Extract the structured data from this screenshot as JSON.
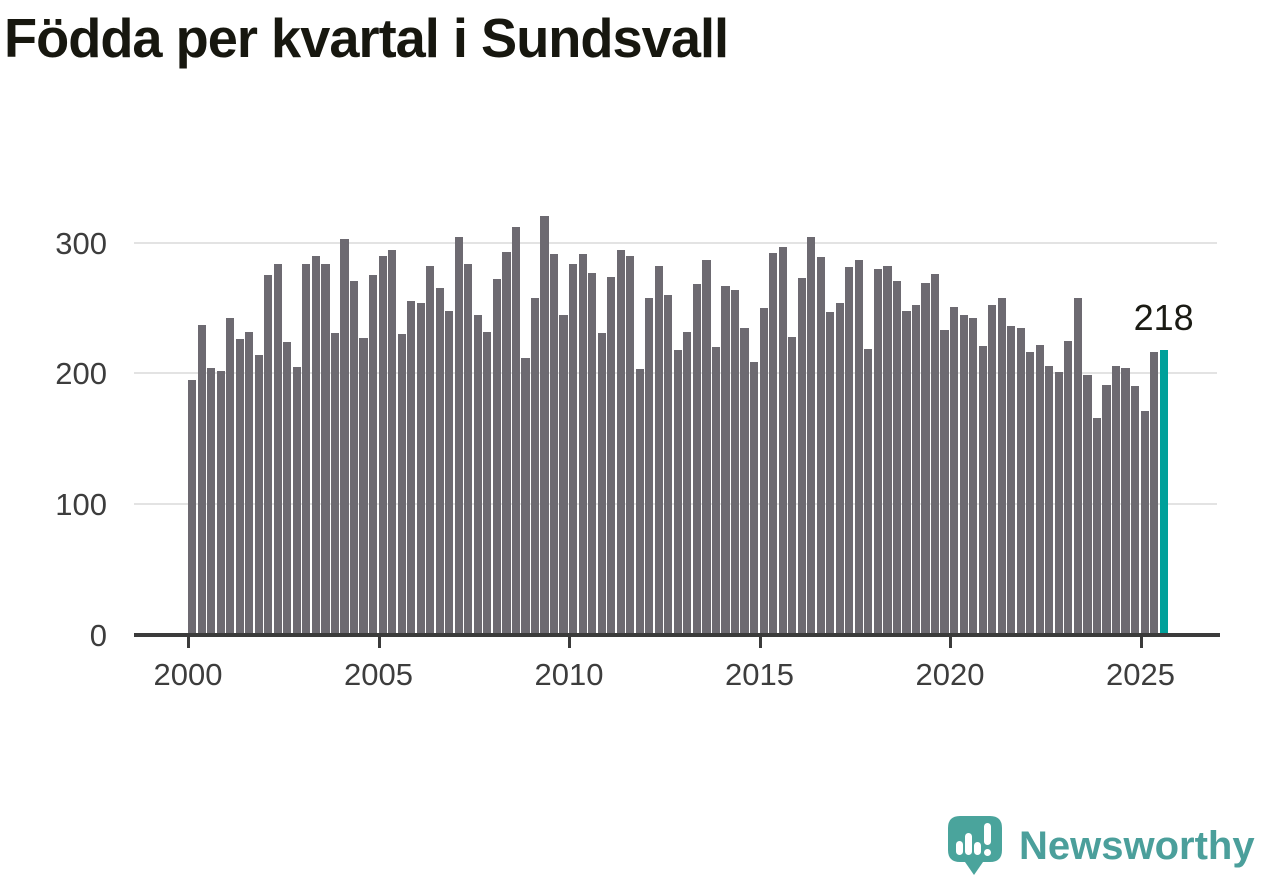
{
  "title": "Födda per kvartal i Sundsvall",
  "annotation": {
    "value_label": "218"
  },
  "footer": {
    "brand": "Newsworthy"
  },
  "colors": {
    "bar": "#6d6a71",
    "highlight": "#00a09a",
    "brand_teal": "#4aa49c",
    "axis": "#3b3b3b",
    "grid": "#e3e3e3",
    "tick_text": "#3d3d3d",
    "title_text": "#17170f"
  },
  "chart_data": {
    "type": "bar",
    "title": "Födda per kvartal i Sundsvall",
    "x_start": "2000-Q1",
    "x_end": "2025-Q3",
    "x_tick_labels": [
      "2000",
      "2005",
      "2010",
      "2015",
      "2020",
      "2025"
    ],
    "y_ticks": [
      0,
      100,
      200,
      300
    ],
    "ylim": [
      0,
      330
    ],
    "grid": true,
    "legend": false,
    "highlight_index": 102,
    "highlight_value": 218,
    "values": [
      195,
      237,
      204,
      202,
      242,
      226,
      232,
      214,
      275,
      284,
      224,
      205,
      284,
      290,
      284,
      231,
      303,
      271,
      227,
      275,
      290,
      294,
      230,
      255,
      254,
      282,
      265,
      248,
      304,
      284,
      245,
      232,
      272,
      293,
      312,
      212,
      258,
      320,
      291,
      245,
      284,
      291,
      277,
      231,
      274,
      294,
      290,
      203,
      258,
      282,
      260,
      218,
      232,
      268,
      287,
      220,
      267,
      264,
      235,
      209,
      250,
      292,
      297,
      228,
      273,
      304,
      289,
      247,
      254,
      281,
      287,
      219,
      280,
      282,
      271,
      248,
      252,
      269,
      276,
      233,
      251,
      245,
      242,
      221,
      252,
      258,
      236,
      235,
      216,
      222,
      206,
      201,
      225,
      258,
      199,
      166,
      191,
      206,
      204,
      190,
      171,
      216,
      218
    ]
  }
}
